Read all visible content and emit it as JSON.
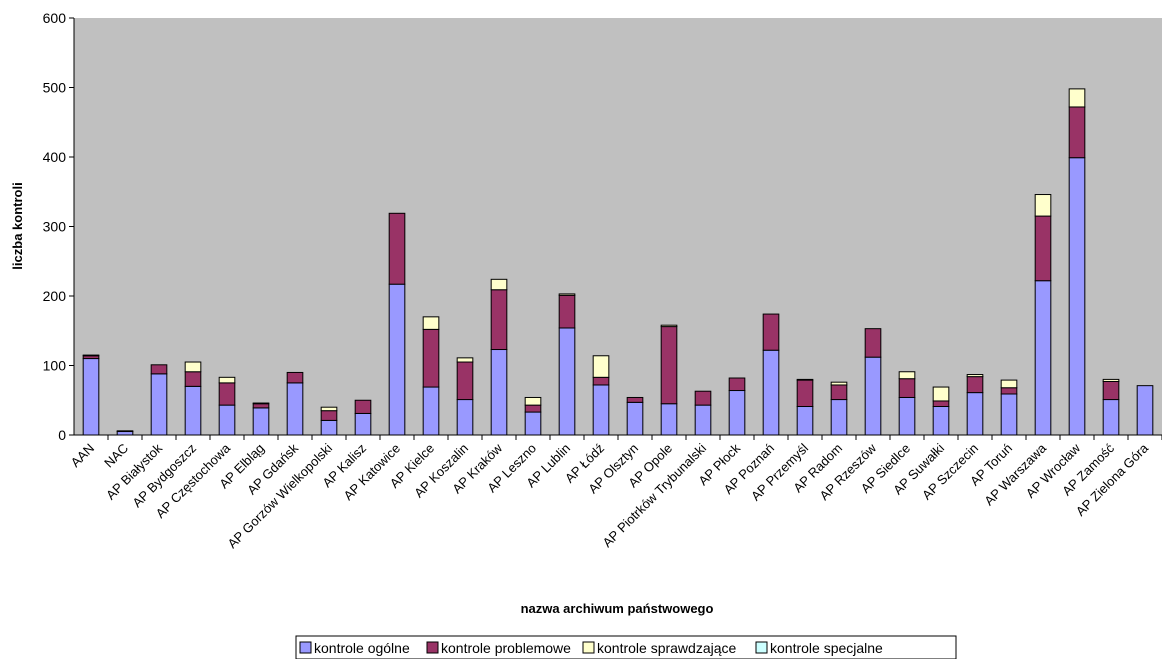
{
  "chart_data": {
    "type": "bar",
    "stacked": true,
    "title": "",
    "xlabel": "nazwa archiwum państwowego",
    "ylabel": "liczba kontroli",
    "ylim": [
      0,
      600
    ],
    "yticks": [
      "0",
      "100",
      "200",
      "300",
      "400",
      "500",
      "600"
    ],
    "grid": false,
    "legend_position": "bottom",
    "categories": [
      "AAN",
      "NAC",
      "AP Białystok",
      "AP Bydgoszcz",
      "AP Częstochowa",
      "AP Elbląg",
      "AP Gdańsk",
      "AP Gorzów Wielkopolski",
      "AP Kalisz",
      "AP Katowice",
      "AP Kielce",
      "AP Koszalin",
      "AP Kraków",
      "AP Leszno",
      "AP Lublin",
      "AP Łódź",
      "AP Olsztyn",
      "AP Opole",
      "AP Piotrków Trybunalski",
      "AP Płock",
      "AP Poznań",
      "AP Przemyśl",
      "AP Radom",
      "AP Rzeszów",
      "AP Siedlce",
      "AP Suwałki",
      "AP Szczecin",
      "AP Toruń",
      "AP Warszawa",
      "AP Wrocław",
      "AP Zamość",
      "AP Zielona Góra"
    ],
    "series": [
      {
        "name": "kontrole ogólne",
        "color": "#9999ff",
        "values": [
          110,
          5,
          88,
          70,
          43,
          39,
          75,
          21,
          31,
          217,
          69,
          51,
          123,
          33,
          154,
          72,
          47,
          45,
          43,
          64,
          122,
          41,
          51,
          112,
          54,
          41,
          61,
          59,
          222,
          399,
          51,
          71
        ]
      },
      {
        "name": "kontrole problemowe",
        "color": "#993366",
        "values": [
          4,
          1,
          13,
          21,
          32,
          6,
          15,
          14,
          19,
          102,
          83,
          54,
          86,
          10,
          47,
          11,
          7,
          111,
          20,
          18,
          52,
          38,
          21,
          41,
          27,
          8,
          23,
          9,
          93,
          73,
          26,
          0
        ]
      },
      {
        "name": "kontrole sprawdzające",
        "color": "#ffffcc",
        "values": [
          1,
          0,
          0,
          14,
          8,
          1,
          0,
          5,
          0,
          0,
          18,
          6,
          15,
          11,
          2,
          31,
          0,
          2,
          0,
          0,
          0,
          1,
          4,
          0,
          10,
          20,
          3,
          11,
          31,
          26,
          3,
          0
        ]
      },
      {
        "name": "kontrole specjalne",
        "color": "#ccffff",
        "values": [
          0,
          0,
          0,
          0,
          0,
          0,
          0,
          0,
          0,
          0,
          0,
          0,
          0,
          0,
          0,
          0,
          0,
          0,
          0,
          0,
          0,
          0,
          0,
          0,
          0,
          0,
          0,
          0,
          0,
          0,
          0,
          0
        ]
      }
    ],
    "plot_background": "#c0c0c0"
  }
}
